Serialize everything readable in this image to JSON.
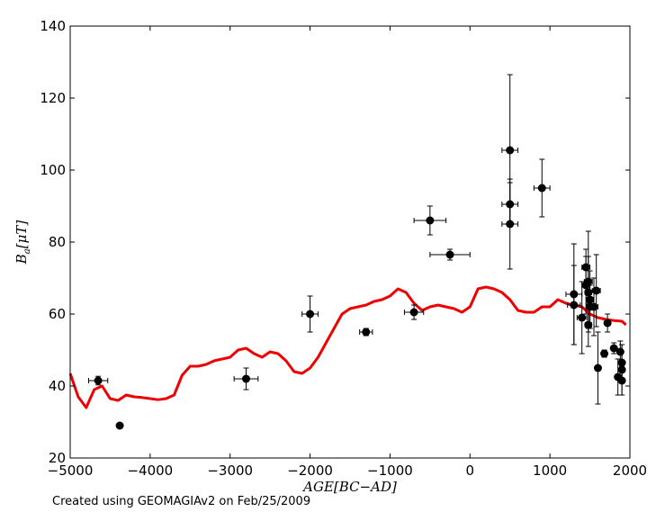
{
  "chart_data": {
    "type": "scatter",
    "xlabel": "AGE[BC−AD]",
    "ylabel": "B",
    "ylabel_subscript": "a",
    "ylabel_unit": "[μT]",
    "xlim": [
      -5000,
      2000
    ],
    "ylim": [
      20,
      140
    ],
    "xticks": [
      -5000,
      -4000,
      -3000,
      -2000,
      -1000,
      0,
      1000,
      2000
    ],
    "yticks": [
      20,
      40,
      60,
      80,
      100,
      120,
      140
    ],
    "grid": false,
    "colors": {
      "curve": "#ee0000",
      "points": "#000000"
    },
    "points": [
      {
        "x": -4650,
        "y": 41.5,
        "xerr": 120,
        "yerr": 1.2
      },
      {
        "x": -4380,
        "y": 29,
        "xerr": 0,
        "yerr": 0
      },
      {
        "x": -2800,
        "y": 42,
        "xerr": 150,
        "yerr": 3
      },
      {
        "x": -2000,
        "y": 60,
        "xerr": 100,
        "yerr": 5
      },
      {
        "x": -1300,
        "y": 55,
        "xerr": 80,
        "yerr": 1
      },
      {
        "x": -700,
        "y": 60.5,
        "xerr": 120,
        "yerr": 2
      },
      {
        "x": -500,
        "y": 86,
        "xerr": 200,
        "yerr": 4
      },
      {
        "x": -250,
        "y": 76.5,
        "xerr": 250,
        "yerr": 1.5
      },
      {
        "x": 500,
        "y": 105.5,
        "xerr": 100,
        "yerr": 21
      },
      {
        "x": 500,
        "y": 90.5,
        "xerr": 100,
        "yerr": 6
      },
      {
        "x": 500,
        "y": 85,
        "xerr": 100,
        "yerr": 12.5
      },
      {
        "x": 900,
        "y": 95,
        "xerr": 100,
        "yerr": 8
      },
      {
        "x": 1300,
        "y": 65.5,
        "xerr": 100,
        "yerr": 14
      },
      {
        "x": 1300,
        "y": 62.5,
        "xerr": 80,
        "yerr": 11
      },
      {
        "x": 1400,
        "y": 59,
        "xerr": 60,
        "yerr": 10
      },
      {
        "x": 1450,
        "y": 73,
        "xerr": 50,
        "yerr": 5
      },
      {
        "x": 1450,
        "y": 68,
        "xerr": 50,
        "yerr": 8
      },
      {
        "x": 1480,
        "y": 69,
        "xerr": 50,
        "yerr": 14
      },
      {
        "x": 1480,
        "y": 66,
        "xerr": 40,
        "yerr": 10
      },
      {
        "x": 1500,
        "y": 64,
        "xerr": 40,
        "yerr": 8
      },
      {
        "x": 1500,
        "y": 62,
        "xerr": 40,
        "yerr": 6
      },
      {
        "x": 1480,
        "y": 57,
        "xerr": 40,
        "yerr": 6
      },
      {
        "x": 1550,
        "y": 62,
        "xerr": 50,
        "yerr": 8
      },
      {
        "x": 1580,
        "y": 66.5,
        "xerr": 50,
        "yerr": 10
      },
      {
        "x": 1600,
        "y": 45,
        "xerr": 30,
        "yerr": 10
      },
      {
        "x": 1680,
        "y": 49,
        "xerr": 20,
        "yerr": 1
      },
      {
        "x": 1720,
        "y": 57.5,
        "xerr": 30,
        "yerr": 2.5
      },
      {
        "x": 1800,
        "y": 50.5,
        "xerr": 30,
        "yerr": 1.5
      },
      {
        "x": 1850,
        "y": 42.5,
        "xerr": 20,
        "yerr": 5
      },
      {
        "x": 1880,
        "y": 49.5,
        "xerr": 20,
        "yerr": 3
      },
      {
        "x": 1900,
        "y": 46.5,
        "xerr": 10,
        "yerr": 5
      },
      {
        "x": 1900,
        "y": 44.5,
        "xerr": 10,
        "yerr": 7
      },
      {
        "x": 1900,
        "y": 41.5,
        "xerr": 10,
        "yerr": 4
      }
    ],
    "curve": {
      "x": [
        -5000,
        -4900,
        -4800,
        -4700,
        -4600,
        -4500,
        -4400,
        -4300,
        -4200,
        -4100,
        -4000,
        -3900,
        -3800,
        -3700,
        -3600,
        -3500,
        -3400,
        -3300,
        -3200,
        -3100,
        -3000,
        -2900,
        -2800,
        -2700,
        -2600,
        -2500,
        -2400,
        -2300,
        -2200,
        -2100,
        -2000,
        -1900,
        -1800,
        -1700,
        -1600,
        -1500,
        -1400,
        -1300,
        -1200,
        -1100,
        -1000,
        -900,
        -800,
        -700,
        -600,
        -500,
        -400,
        -300,
        -200,
        -100,
        0,
        100,
        200,
        300,
        400,
        500,
        600,
        700,
        800,
        900,
        1000,
        1100,
        1200,
        1300,
        1400,
        1500,
        1600,
        1700,
        1800,
        1900,
        1950
      ],
      "y": [
        43.5,
        37,
        34,
        39,
        40,
        36.5,
        36,
        37.5,
        37,
        36.8,
        36.5,
        36.2,
        36.5,
        37.5,
        43,
        45.5,
        45.5,
        46,
        47,
        47.5,
        48,
        50,
        50.5,
        49,
        48,
        49.5,
        49,
        47,
        44,
        43.5,
        45,
        48,
        52,
        56,
        60,
        61.5,
        62,
        62.5,
        63.5,
        64,
        65,
        67,
        66,
        63,
        61,
        62,
        62.5,
        62,
        61.5,
        60.5,
        62,
        67,
        67.5,
        67,
        66,
        64,
        61,
        60.5,
        60.5,
        62,
        62,
        64,
        63,
        62.5,
        62,
        60,
        59,
        58.5,
        58.2,
        58,
        57
      ]
    }
  },
  "footer": "Created using GEOMAGIAv2 on Feb/25/2009"
}
